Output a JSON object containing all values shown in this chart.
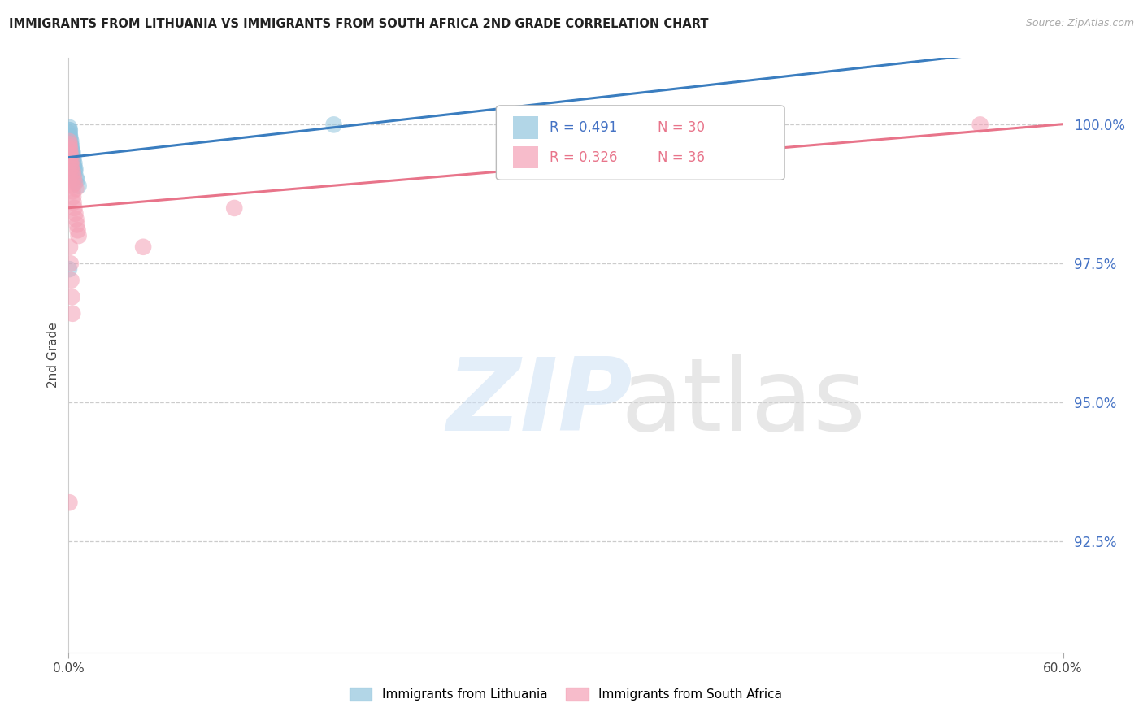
{
  "title": "IMMIGRANTS FROM LITHUANIA VS IMMIGRANTS FROM SOUTH AFRICA 2ND GRADE CORRELATION CHART",
  "source": "Source: ZipAtlas.com",
  "ylabel": "2nd Grade",
  "ytick_values": [
    92.5,
    95.0,
    97.5,
    100.0
  ],
  "ytick_labels": [
    "92.5%",
    "95.0%",
    "97.5%",
    "100.0%"
  ],
  "xlim": [
    0.0,
    60.0
  ],
  "ylim": [
    90.5,
    101.2
  ],
  "legend_r1": "R = 0.491",
  "legend_n1": "N = 30",
  "legend_r2": "R = 0.326",
  "legend_n2": "N = 36",
  "blue_color": "#92c5de",
  "pink_color": "#f4a0b5",
  "blue_line_color": "#3a7dbf",
  "pink_line_color": "#e8748a",
  "legend_r_color_blue": "#4472c4",
  "legend_r_color_pink": "#e8748a",
  "legend_n_color": "#e8748a",
  "blue_x": [
    0.05,
    0.08,
    0.15,
    0.2,
    0.25,
    0.3,
    0.35,
    0.4,
    0.5,
    0.6,
    0.05,
    0.1,
    0.12,
    0.18,
    0.22,
    0.28,
    0.32,
    0.38,
    0.45,
    0.06,
    0.09,
    0.14,
    0.19,
    0.24,
    0.29,
    0.35,
    0.03,
    0.07,
    16.0,
    0.04
  ],
  "blue_y": [
    99.9,
    99.8,
    99.7,
    99.6,
    99.5,
    99.4,
    99.3,
    99.2,
    99.0,
    98.9,
    99.85,
    99.75,
    99.65,
    99.55,
    99.45,
    99.35,
    99.25,
    99.15,
    99.05,
    99.8,
    99.7,
    99.6,
    99.5,
    99.4,
    99.3,
    99.2,
    97.4,
    99.9,
    100.0,
    99.95
  ],
  "pink_x": [
    0.04,
    0.06,
    0.08,
    0.1,
    0.12,
    0.15,
    0.18,
    0.2,
    0.22,
    0.25,
    0.28,
    0.3,
    0.35,
    0.4,
    0.45,
    0.5,
    0.55,
    0.6,
    0.05,
    0.09,
    0.13,
    0.17,
    0.21,
    0.26,
    0.32,
    0.38,
    0.44,
    0.08,
    0.12,
    0.16,
    0.2,
    0.24,
    4.5,
    10.0,
    55.0,
    0.05
  ],
  "pink_y": [
    99.7,
    99.6,
    99.5,
    99.4,
    99.3,
    99.2,
    99.1,
    99.0,
    98.9,
    98.8,
    98.7,
    98.6,
    98.5,
    98.4,
    98.3,
    98.2,
    98.1,
    98.0,
    99.65,
    99.55,
    99.45,
    99.35,
    99.25,
    99.15,
    99.05,
    98.95,
    98.85,
    97.8,
    97.5,
    97.2,
    96.9,
    96.6,
    97.8,
    98.5,
    100.0,
    93.2
  ]
}
